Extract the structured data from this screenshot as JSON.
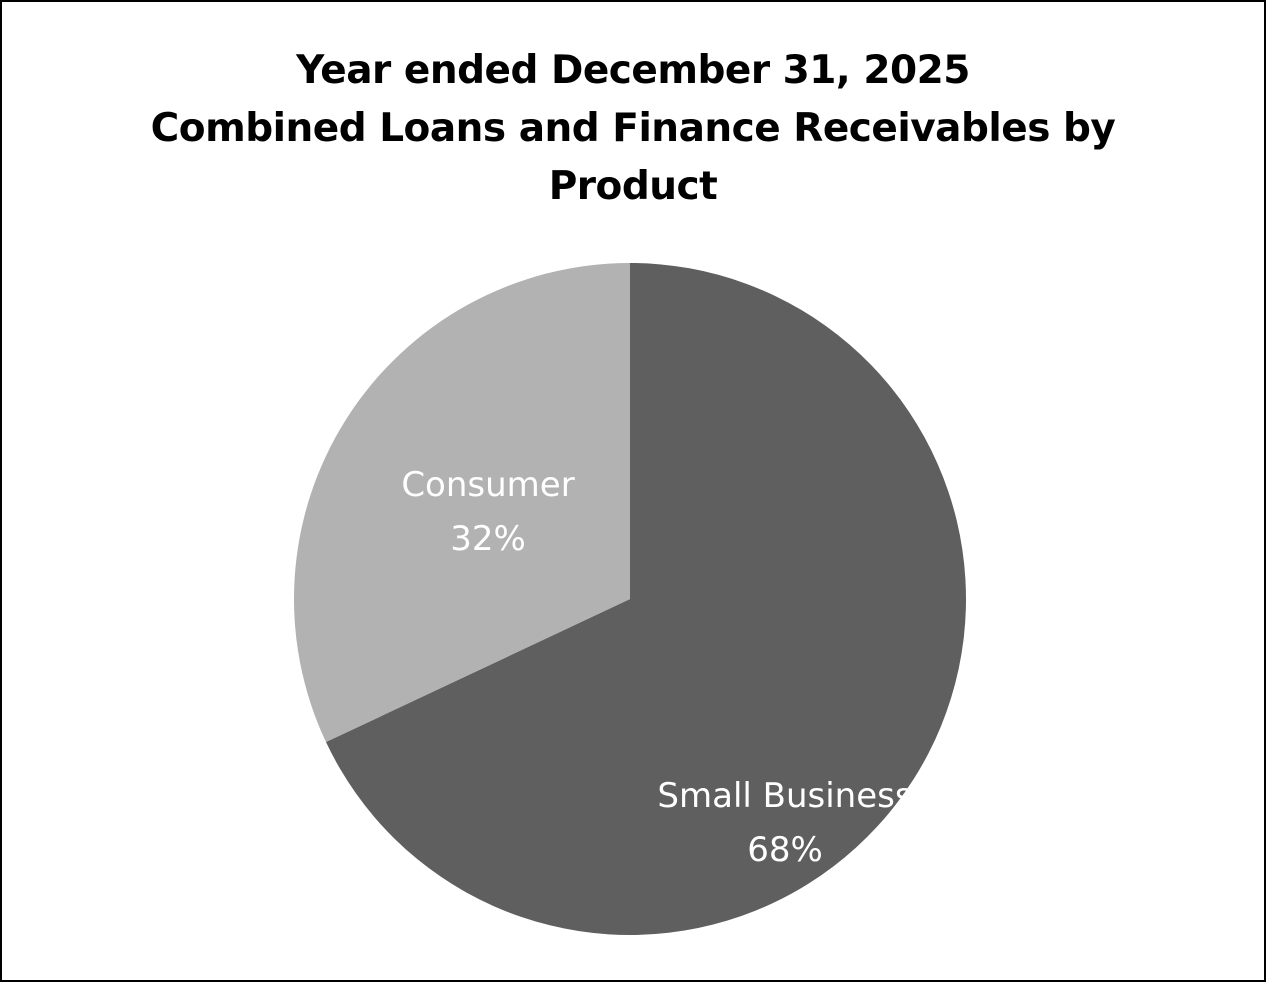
{
  "chart_data": {
    "type": "pie",
    "title": [
      "Year ended December 31, 2025",
      "Combined Loans and Finance Receivables by",
      "Product"
    ],
    "slices": [
      {
        "label": "Small Business",
        "value": 68,
        "value_label": "68%",
        "color": "#5f5f5f"
      },
      {
        "label": "Consumer",
        "value": 32,
        "value_label": "32%",
        "color": "#b2b2b2"
      }
    ],
    "legend": "none"
  }
}
